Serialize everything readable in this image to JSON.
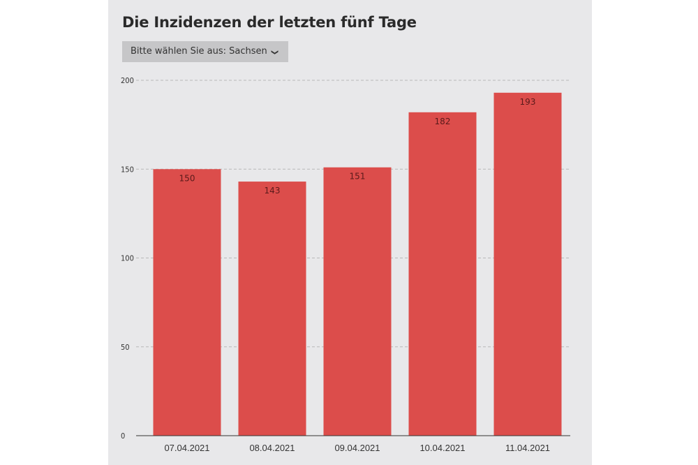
{
  "header": {
    "title": "Die Inzidenzen der letzten fünf Tage",
    "dropdown_label": "Bitte wählen Sie aus: Sachsen",
    "dropdown_icon": "chevron-down-icon"
  },
  "colors": {
    "bar": "#dc4d4b",
    "panel": "#e8e8ea",
    "grid": "#b8b8b8"
  },
  "chart_data": {
    "type": "bar",
    "title": "Die Inzidenzen der letzten fünf Tage",
    "xlabel": "",
    "ylabel": "",
    "categories": [
      "07.04.2021",
      "08.04.2021",
      "09.04.2021",
      "10.04.2021",
      "11.04.2021"
    ],
    "values": [
      150,
      143,
      151,
      182,
      193
    ],
    "data_labels": [
      "150",
      "143",
      "151",
      "182",
      "193"
    ],
    "ylim": [
      0,
      200
    ],
    "yticks": [
      0,
      50,
      100,
      150,
      200
    ],
    "grid": true,
    "legend": "none"
  }
}
